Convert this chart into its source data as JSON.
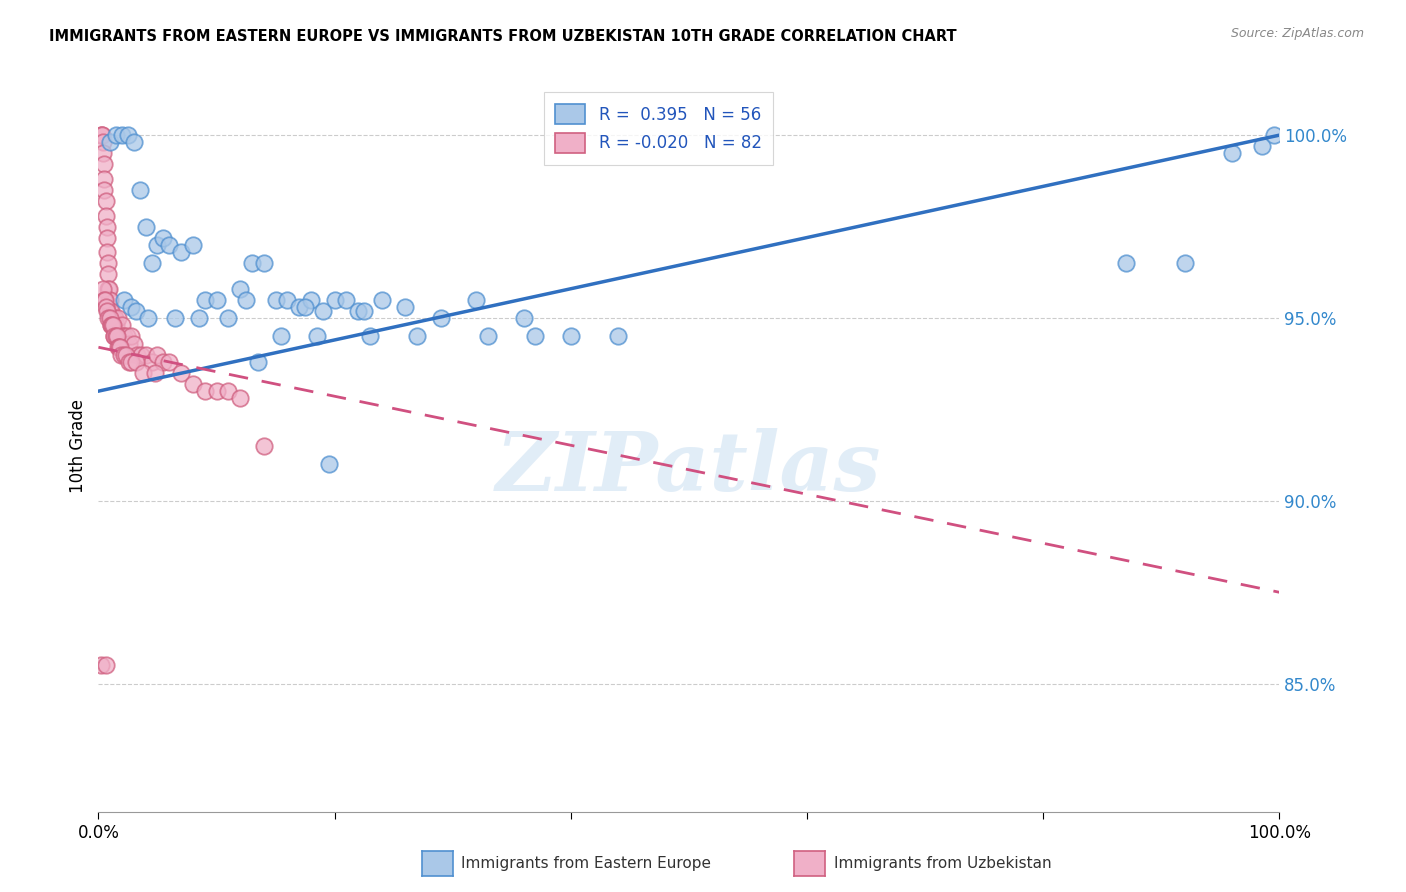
{
  "title": "IMMIGRANTS FROM EASTERN EUROPE VS IMMIGRANTS FROM UZBEKISTAN 10TH GRADE CORRELATION CHART",
  "source": "Source: ZipAtlas.com",
  "ylabel": "10th Grade",
  "xlim": [
    0,
    100
  ],
  "ylim": [
    81.5,
    101.5
  ],
  "yticks": [
    85.0,
    90.0,
    95.0,
    100.0
  ],
  "ytick_labels": [
    "85.0%",
    "90.0%",
    "95.0%",
    "100.0%"
  ],
  "blue_R": 0.395,
  "blue_N": 56,
  "pink_R": -0.02,
  "pink_N": 82,
  "blue_fill": "#aac8e8",
  "pink_fill": "#f0b0c8",
  "blue_edge": "#5090d0",
  "pink_edge": "#d06080",
  "blue_line_color": "#3070c0",
  "pink_line_color": "#d05080",
  "watermark": "ZIPatlas",
  "blue_line_x0": 0,
  "blue_line_y0": 93.0,
  "blue_line_x1": 100,
  "blue_line_y1": 100.0,
  "pink_line_x0": 0,
  "pink_line_y0": 94.2,
  "pink_line_x1": 100,
  "pink_line_y1": 87.5,
  "blue_x": [
    1.0,
    1.5,
    2.0,
    2.5,
    3.0,
    3.5,
    4.0,
    4.5,
    5.0,
    5.5,
    6.0,
    7.0,
    8.0,
    9.0,
    10.0,
    11.0,
    12.0,
    13.0,
    14.0,
    15.0,
    16.0,
    17.0,
    18.0,
    19.0,
    20.0,
    21.0,
    22.0,
    24.0,
    2.2,
    2.8,
    3.2,
    4.2,
    6.5,
    8.5,
    12.5,
    17.5,
    22.5,
    26.0,
    29.0,
    32.0,
    36.0,
    15.5,
    18.5,
    23.0,
    27.0,
    33.0,
    37.0,
    40.0,
    44.0,
    87.0,
    92.0,
    96.0,
    98.5,
    99.5,
    13.5,
    19.5
  ],
  "blue_y": [
    99.8,
    100.0,
    100.0,
    100.0,
    99.8,
    98.5,
    97.5,
    96.5,
    97.0,
    97.2,
    97.0,
    96.8,
    97.0,
    95.5,
    95.5,
    95.0,
    95.8,
    96.5,
    96.5,
    95.5,
    95.5,
    95.3,
    95.5,
    95.2,
    95.5,
    95.5,
    95.2,
    95.5,
    95.5,
    95.3,
    95.2,
    95.0,
    95.0,
    95.0,
    95.5,
    95.3,
    95.2,
    95.3,
    95.0,
    95.5,
    95.0,
    94.5,
    94.5,
    94.5,
    94.5,
    94.5,
    94.5,
    94.5,
    94.5,
    96.5,
    96.5,
    99.5,
    99.7,
    100.0,
    93.8,
    91.0
  ],
  "pink_x": [
    0.2,
    0.3,
    0.3,
    0.4,
    0.4,
    0.5,
    0.5,
    0.5,
    0.6,
    0.6,
    0.7,
    0.7,
    0.7,
    0.8,
    0.8,
    0.8,
    0.9,
    0.9,
    1.0,
    1.0,
    1.0,
    1.1,
    1.1,
    1.2,
    1.2,
    1.3,
    1.3,
    1.4,
    1.4,
    1.5,
    1.5,
    1.6,
    1.7,
    1.8,
    1.9,
    2.0,
    2.1,
    2.2,
    2.4,
    2.6,
    2.8,
    3.0,
    3.3,
    3.6,
    4.0,
    4.5,
    5.0,
    5.5,
    6.0,
    7.0,
    8.0,
    9.0,
    10.0,
    11.0,
    12.0,
    14.0,
    0.35,
    0.45,
    0.55,
    0.65,
    0.75,
    0.85,
    0.95,
    1.05,
    1.15,
    1.25,
    1.35,
    1.45,
    1.55,
    1.65,
    1.75,
    1.85,
    1.95,
    2.15,
    2.35,
    2.55,
    2.75,
    3.15,
    3.8,
    4.8,
    0.25,
    0.6
  ],
  "pink_y": [
    100.0,
    100.0,
    100.0,
    99.8,
    99.5,
    99.2,
    98.8,
    98.5,
    98.2,
    97.8,
    97.5,
    97.2,
    96.8,
    96.5,
    96.2,
    95.8,
    95.8,
    95.5,
    95.5,
    95.2,
    95.0,
    95.2,
    94.8,
    95.0,
    94.8,
    94.8,
    94.5,
    95.0,
    94.5,
    94.8,
    94.5,
    94.5,
    95.0,
    94.5,
    94.5,
    94.8,
    94.5,
    94.5,
    94.5,
    94.3,
    94.5,
    94.3,
    94.0,
    94.0,
    94.0,
    93.8,
    94.0,
    93.8,
    93.8,
    93.5,
    93.2,
    93.0,
    93.0,
    93.0,
    92.8,
    91.5,
    95.8,
    95.5,
    95.5,
    95.3,
    95.2,
    95.0,
    95.0,
    94.8,
    94.8,
    94.8,
    94.5,
    94.5,
    94.5,
    94.2,
    94.2,
    94.2,
    94.0,
    94.0,
    94.0,
    93.8,
    93.8,
    93.8,
    93.5,
    93.5,
    85.5,
    85.5
  ]
}
